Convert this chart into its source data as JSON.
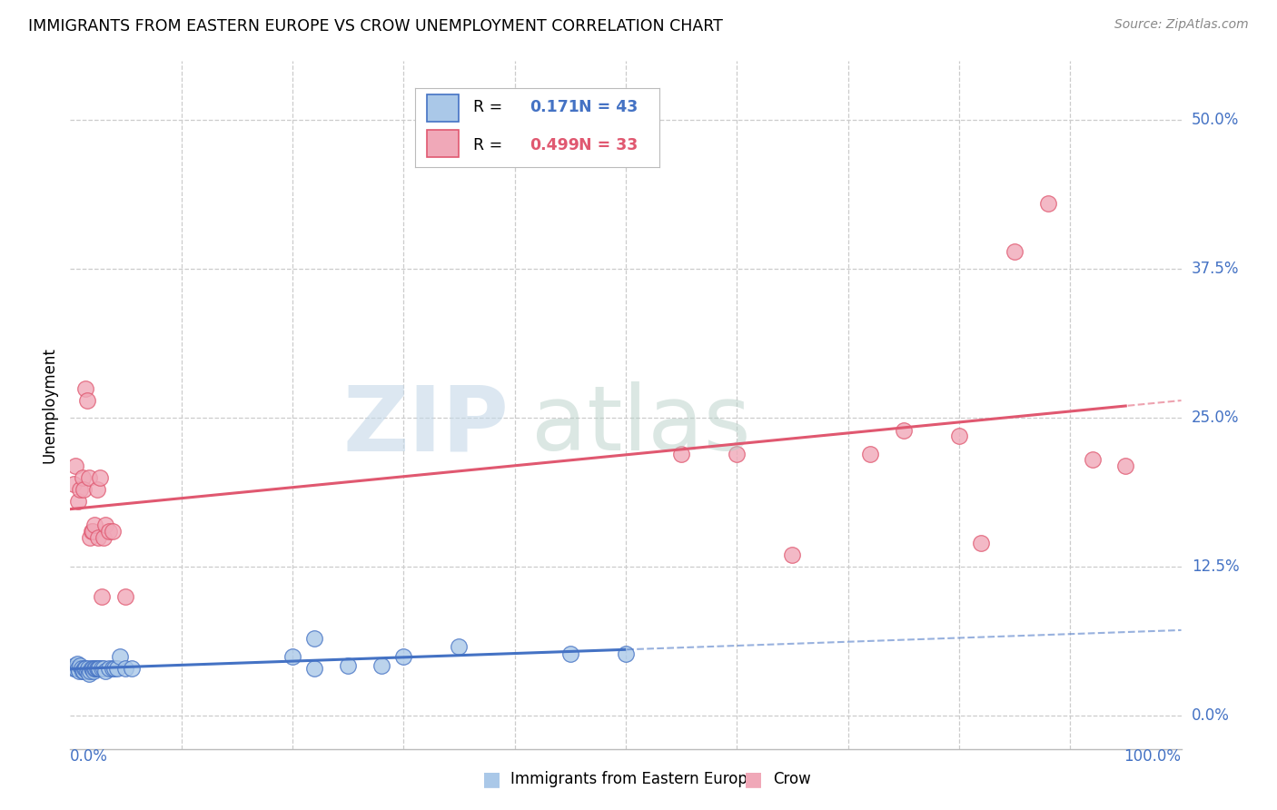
{
  "title": "IMMIGRANTS FROM EASTERN EUROPE VS CROW UNEMPLOYMENT CORRELATION CHART",
  "source": "Source: ZipAtlas.com",
  "ylabel": "Unemployment",
  "ytick_values": [
    0.0,
    0.125,
    0.25,
    0.375,
    0.5
  ],
  "ytick_labels": [
    "0.0%",
    "12.5%",
    "25.0%",
    "37.5%",
    "50.0%"
  ],
  "xlim": [
    0.0,
    1.0
  ],
  "ylim": [
    -0.028,
    0.55
  ],
  "blue_R": 0.171,
  "blue_N": 43,
  "pink_R": 0.499,
  "pink_N": 33,
  "blue_label": "Immigrants from Eastern Europe",
  "pink_label": "Crow",
  "background_color": "#ffffff",
  "grid_color": "#cccccc",
  "blue_scatter_color": "#aac8e8",
  "pink_scatter_color": "#f0a8b8",
  "blue_line_color": "#4472c4",
  "pink_line_color": "#e05870",
  "blue_scatter_x": [
    0.003,
    0.004,
    0.005,
    0.006,
    0.007,
    0.008,
    0.009,
    0.01,
    0.011,
    0.012,
    0.013,
    0.014,
    0.015,
    0.016,
    0.017,
    0.018,
    0.019,
    0.02,
    0.021,
    0.022,
    0.023,
    0.024,
    0.025,
    0.026,
    0.028,
    0.03,
    0.032,
    0.035,
    0.038,
    0.04,
    0.042,
    0.045,
    0.05,
    0.055,
    0.2,
    0.22,
    0.25,
    0.28,
    0.3,
    0.35,
    0.45,
    0.5,
    0.22
  ],
  "blue_scatter_y": [
    0.04,
    0.042,
    0.04,
    0.044,
    0.04,
    0.038,
    0.042,
    0.04,
    0.038,
    0.038,
    0.04,
    0.04,
    0.038,
    0.04,
    0.035,
    0.038,
    0.04,
    0.04,
    0.038,
    0.04,
    0.04,
    0.04,
    0.04,
    0.04,
    0.04,
    0.04,
    0.038,
    0.04,
    0.04,
    0.04,
    0.04,
    0.05,
    0.04,
    0.04,
    0.05,
    0.04,
    0.042,
    0.042,
    0.05,
    0.058,
    0.052,
    0.052,
    0.065
  ],
  "pink_scatter_x": [
    0.003,
    0.005,
    0.007,
    0.009,
    0.011,
    0.012,
    0.014,
    0.015,
    0.017,
    0.018,
    0.019,
    0.02,
    0.022,
    0.024,
    0.025,
    0.027,
    0.028,
    0.03,
    0.032,
    0.035,
    0.038,
    0.05,
    0.55,
    0.6,
    0.65,
    0.72,
    0.75,
    0.8,
    0.82,
    0.85,
    0.88,
    0.92,
    0.95
  ],
  "pink_scatter_y": [
    0.195,
    0.21,
    0.18,
    0.19,
    0.2,
    0.19,
    0.275,
    0.265,
    0.2,
    0.15,
    0.155,
    0.155,
    0.16,
    0.19,
    0.15,
    0.2,
    0.1,
    0.15,
    0.16,
    0.155,
    0.155,
    0.1,
    0.22,
    0.22,
    0.135,
    0.22,
    0.24,
    0.235,
    0.145,
    0.39,
    0.43,
    0.215,
    0.21
  ]
}
